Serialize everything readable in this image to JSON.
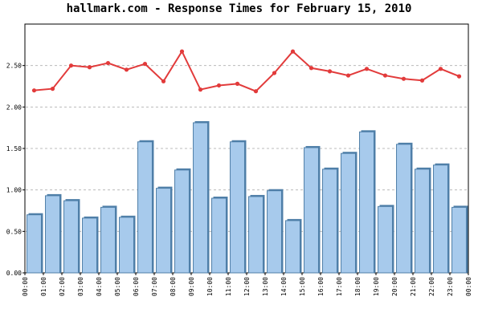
{
  "chart_data": {
    "type": "bar",
    "title": "hallmark.com - Response Times for February 15, 2010",
    "xlabel": "",
    "ylabel": "",
    "ylim": [
      0,
      3.0
    ],
    "yticks": [
      "0.00",
      "0.50",
      "1.00",
      "1.50",
      "2.00",
      "2.50"
    ],
    "grid": true,
    "legend": "none",
    "x_tick_labels": [
      "00:00",
      "01:00",
      "02:00",
      "03:00",
      "04:00",
      "05:00",
      "06:00",
      "07:00",
      "08:00",
      "09:00",
      "10:00",
      "11:00",
      "12:00",
      "13:00",
      "14:00",
      "15:00",
      "16:00",
      "17:00",
      "18:00",
      "19:00",
      "20:00",
      "21:00",
      "22:00",
      "23:00",
      "00:00"
    ],
    "series": [
      {
        "type": "bar",
        "color": "#a7caec",
        "edge_color": "#4f7fa8",
        "values": [
          0.7,
          0.93,
          0.87,
          0.66,
          0.79,
          0.67,
          1.58,
          1.02,
          1.24,
          1.81,
          0.9,
          1.58,
          0.92,
          0.99,
          0.63,
          1.51,
          1.25,
          1.44,
          1.7,
          0.8,
          1.55,
          1.25,
          1.3,
          0.79
        ]
      },
      {
        "type": "line",
        "color": "#e23b3b",
        "values": [
          2.2,
          2.22,
          2.5,
          2.48,
          2.53,
          2.45,
          2.52,
          2.31,
          2.67,
          2.21,
          2.26,
          2.28,
          2.19,
          2.41,
          2.67,
          2.47,
          2.43,
          2.38,
          2.46,
          2.38,
          2.34,
          2.32,
          2.46,
          2.37
        ]
      }
    ]
  }
}
